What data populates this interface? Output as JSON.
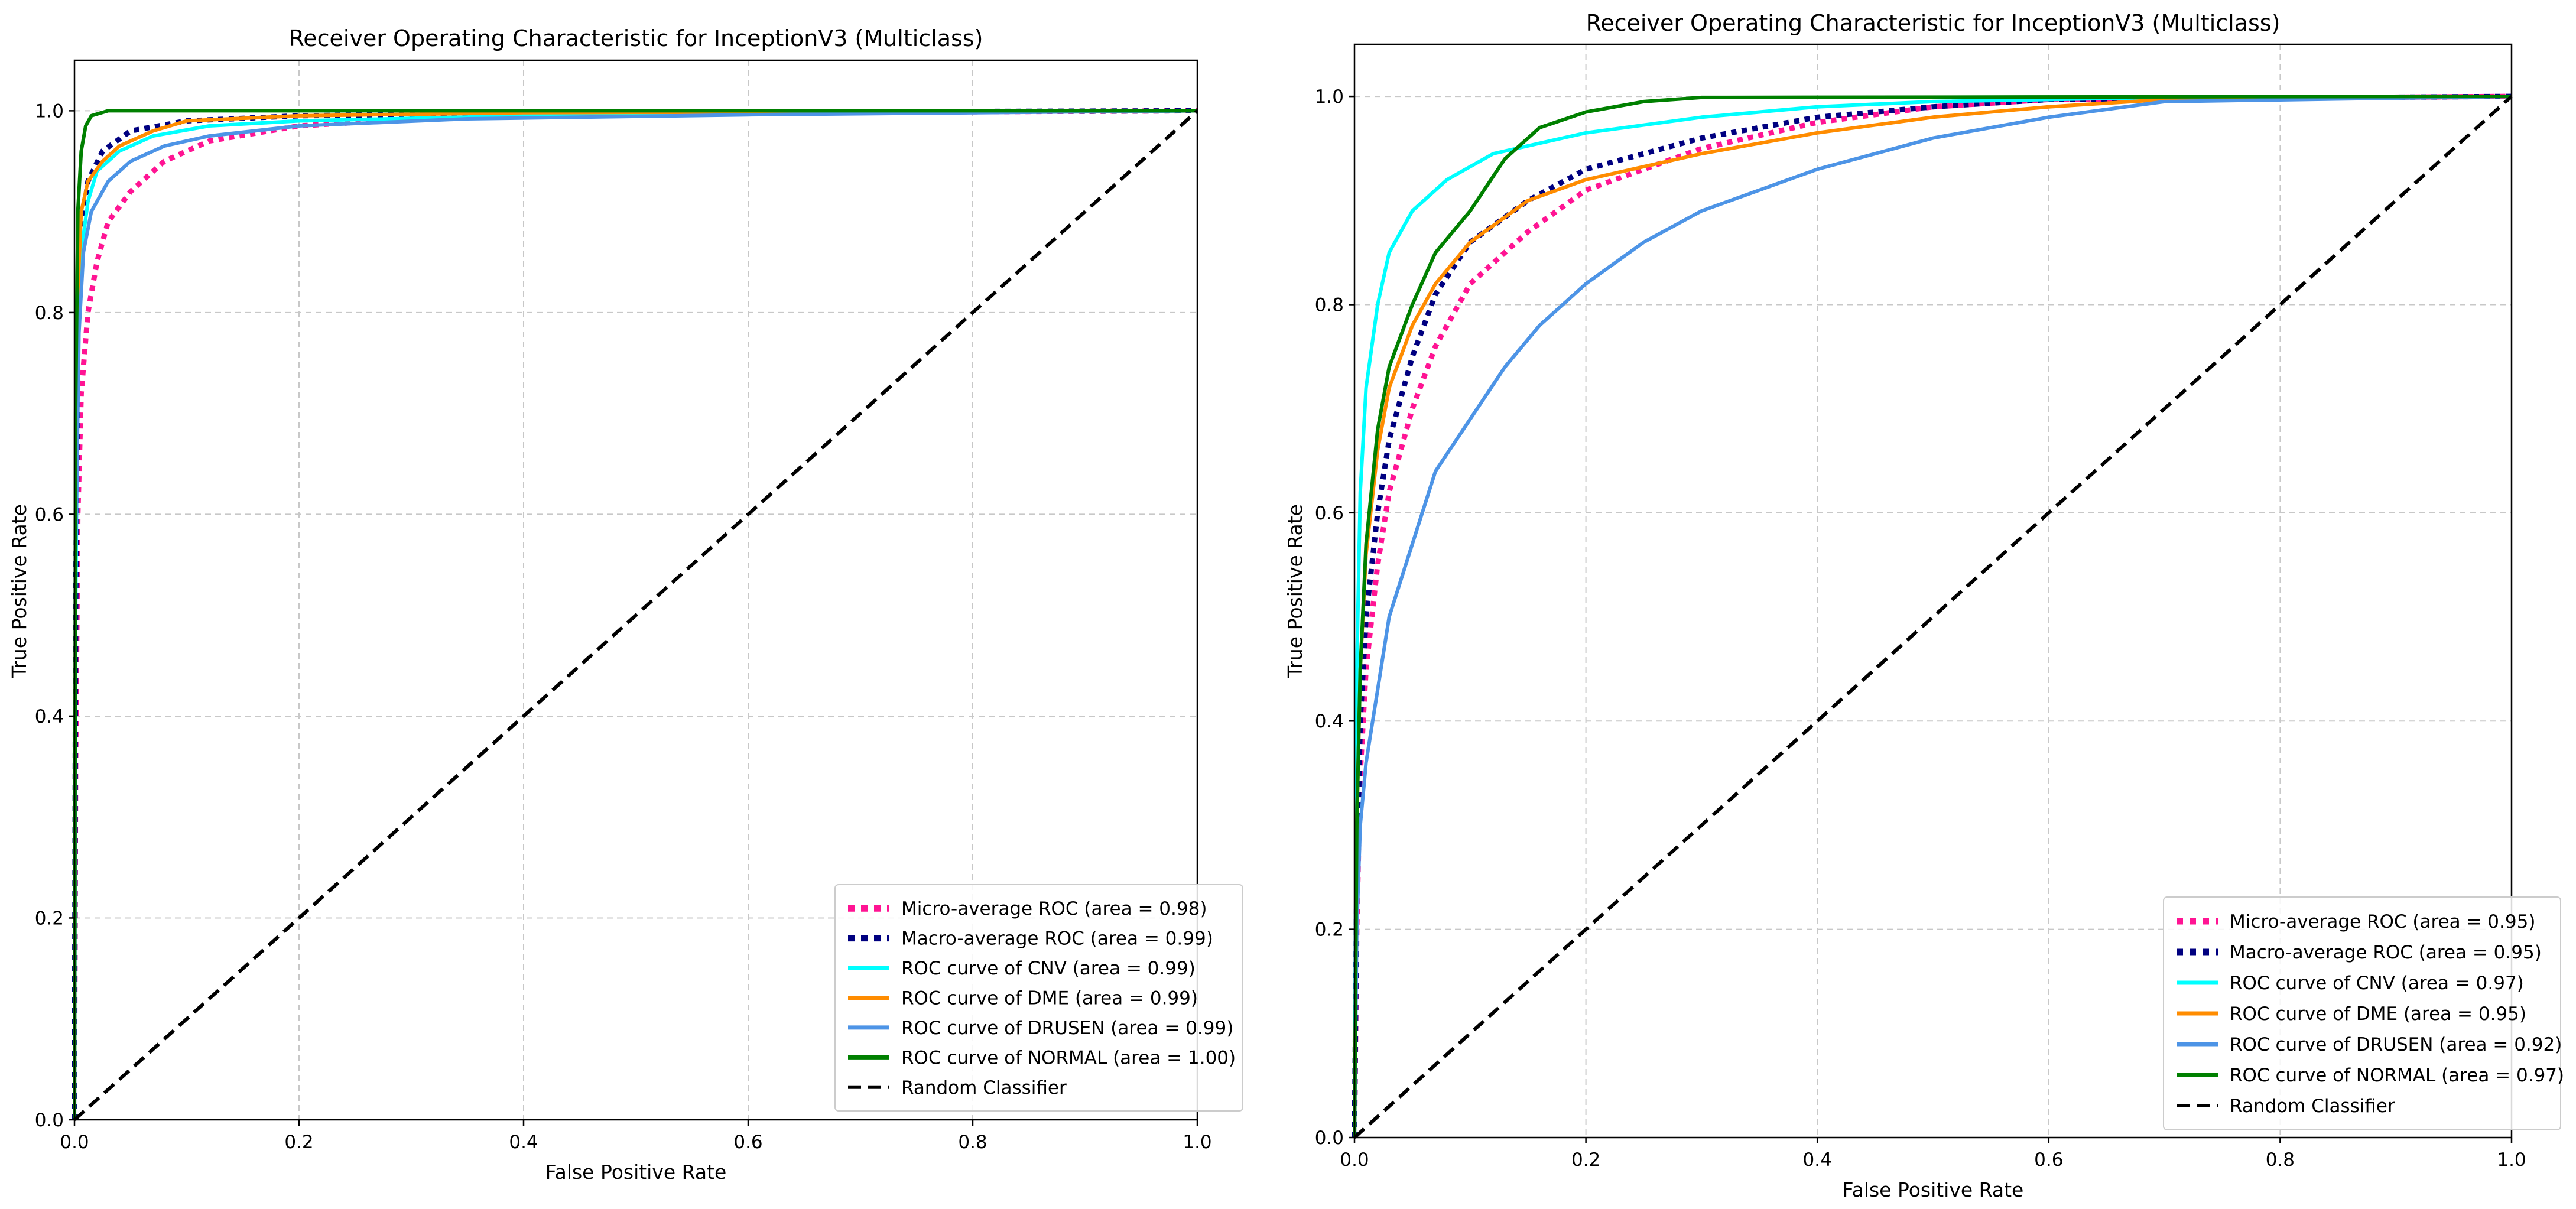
{
  "chart_data": [
    {
      "type": "line",
      "title": "Receiver Operating Characteristic for InceptionV3 (Multiclass)",
      "xlabel": "False Positive Rate",
      "ylabel": "True Positive Rate",
      "xlim": [
        0,
        1
      ],
      "ylim": [
        0,
        1.05
      ],
      "xticks": [
        "0.0",
        "0.2",
        "0.4",
        "0.6",
        "0.8",
        "1.0"
      ],
      "yticks": [
        "0.0",
        "0.2",
        "0.4",
        "0.6",
        "0.8",
        "1.0"
      ],
      "grid": true,
      "legend_position": "lower-right",
      "series": [
        {
          "name": "Micro-average ROC (area = 0.98)",
          "color": "#ff1493",
          "style": "dotted",
          "points": [
            [
              0,
              0
            ],
            [
              0.001,
              0.35
            ],
            [
              0.003,
              0.6
            ],
            [
              0.006,
              0.72
            ],
            [
              0.012,
              0.8
            ],
            [
              0.02,
              0.85
            ],
            [
              0.03,
              0.89
            ],
            [
              0.05,
              0.92
            ],
            [
              0.08,
              0.95
            ],
            [
              0.12,
              0.97
            ],
            [
              0.2,
              0.985
            ],
            [
              0.35,
              0.995
            ],
            [
              0.6,
              0.998
            ],
            [
              1,
              1
            ]
          ]
        },
        {
          "name": "Macro-average ROC (area = 0.99)",
          "color": "#000080",
          "style": "dotted",
          "points": [
            [
              0,
              0
            ],
            [
              0.001,
              0.5
            ],
            [
              0.003,
              0.78
            ],
            [
              0.006,
              0.88
            ],
            [
              0.012,
              0.93
            ],
            [
              0.025,
              0.96
            ],
            [
              0.05,
              0.98
            ],
            [
              0.1,
              0.99
            ],
            [
              0.2,
              0.995
            ],
            [
              0.4,
              0.998
            ],
            [
              1,
              1
            ]
          ]
        },
        {
          "name": "ROC curve of CNV (area = 0.99)",
          "color": "#00ffff",
          "style": "solid",
          "points": [
            [
              0,
              0
            ],
            [
              0.001,
              0.5
            ],
            [
              0.003,
              0.75
            ],
            [
              0.006,
              0.86
            ],
            [
              0.012,
              0.91
            ],
            [
              0.02,
              0.94
            ],
            [
              0.04,
              0.96
            ],
            [
              0.07,
              0.975
            ],
            [
              0.12,
              0.985
            ],
            [
              0.2,
              0.99
            ],
            [
              0.4,
              0.995
            ],
            [
              0.6,
              0.997
            ],
            [
              1,
              1
            ]
          ]
        },
        {
          "name": "ROC curve of DME (area = 0.99)",
          "color": "#ff8c00",
          "style": "solid",
          "points": [
            [
              0,
              0
            ],
            [
              0.001,
              0.6
            ],
            [
              0.003,
              0.82
            ],
            [
              0.006,
              0.9
            ],
            [
              0.012,
              0.93
            ],
            [
              0.025,
              0.95
            ],
            [
              0.04,
              0.965
            ],
            [
              0.07,
              0.98
            ],
            [
              0.1,
              0.99
            ],
            [
              0.2,
              0.995
            ],
            [
              0.4,
              0.998
            ],
            [
              1,
              1
            ]
          ]
        },
        {
          "name": "ROC curve of DRUSEN (area = 0.99)",
          "color": "#4d94e6",
          "style": "solid",
          "points": [
            [
              0,
              0
            ],
            [
              0.001,
              0.55
            ],
            [
              0.004,
              0.78
            ],
            [
              0.008,
              0.86
            ],
            [
              0.015,
              0.9
            ],
            [
              0.03,
              0.93
            ],
            [
              0.05,
              0.95
            ],
            [
              0.08,
              0.965
            ],
            [
              0.12,
              0.975
            ],
            [
              0.2,
              0.985
            ],
            [
              0.35,
              0.992
            ],
            [
              0.6,
              0.996
            ],
            [
              1,
              1
            ]
          ]
        },
        {
          "name": "ROC curve of NORMAL (area = 1.00)",
          "color": "#008000",
          "style": "solid",
          "points": [
            [
              0,
              0
            ],
            [
              0.001,
              0.7
            ],
            [
              0.003,
              0.9
            ],
            [
              0.006,
              0.96
            ],
            [
              0.01,
              0.985
            ],
            [
              0.015,
              0.995
            ],
            [
              0.03,
              1.0
            ],
            [
              1,
              1
            ]
          ]
        },
        {
          "name": "Random Classifier",
          "color": "#000000",
          "style": "dashed",
          "points": [
            [
              0,
              0
            ],
            [
              1,
              1
            ]
          ]
        }
      ]
    },
    {
      "type": "line",
      "title": "Receiver Operating Characteristic for InceptionV3 (Multiclass)",
      "xlabel": "False Positive Rate",
      "ylabel": "True Positive Rate",
      "xlim": [
        0,
        1
      ],
      "ylim": [
        0,
        1.05
      ],
      "xticks": [
        "0.0",
        "0.2",
        "0.4",
        "0.6",
        "0.8",
        "1.0"
      ],
      "yticks": [
        "0.0",
        "0.2",
        "0.4",
        "0.6",
        "0.8",
        "1.0"
      ],
      "grid": true,
      "legend_position": "lower-right",
      "series": [
        {
          "name": "Micro-average ROC (area = 0.95)",
          "color": "#ff1493",
          "style": "dotted",
          "points": [
            [
              0,
              0
            ],
            [
              0.002,
              0.2
            ],
            [
              0.005,
              0.35
            ],
            [
              0.01,
              0.45
            ],
            [
              0.02,
              0.55
            ],
            [
              0.03,
              0.62
            ],
            [
              0.05,
              0.7
            ],
            [
              0.07,
              0.76
            ],
            [
              0.1,
              0.82
            ],
            [
              0.15,
              0.87
            ],
            [
              0.2,
              0.91
            ],
            [
              0.3,
              0.95
            ],
            [
              0.4,
              0.975
            ],
            [
              0.5,
              0.99
            ],
            [
              0.6,
              0.997
            ],
            [
              1,
              1
            ]
          ]
        },
        {
          "name": "Macro-average ROC (area = 0.95)",
          "color": "#000080",
          "style": "dotted",
          "points": [
            [
              0,
              0
            ],
            [
              0.002,
              0.25
            ],
            [
              0.005,
              0.4
            ],
            [
              0.01,
              0.5
            ],
            [
              0.02,
              0.6
            ],
            [
              0.03,
              0.67
            ],
            [
              0.05,
              0.75
            ],
            [
              0.07,
              0.81
            ],
            [
              0.1,
              0.86
            ],
            [
              0.15,
              0.9
            ],
            [
              0.2,
              0.93
            ],
            [
              0.3,
              0.96
            ],
            [
              0.4,
              0.98
            ],
            [
              0.5,
              0.99
            ],
            [
              0.6,
              0.997
            ],
            [
              1,
              1
            ]
          ]
        },
        {
          "name": "ROC curve of CNV (area = 0.97)",
          "color": "#00ffff",
          "style": "solid",
          "points": [
            [
              0,
              0
            ],
            [
              0.002,
              0.45
            ],
            [
              0.005,
              0.62
            ],
            [
              0.01,
              0.72
            ],
            [
              0.02,
              0.8
            ],
            [
              0.03,
              0.85
            ],
            [
              0.05,
              0.89
            ],
            [
              0.08,
              0.92
            ],
            [
              0.12,
              0.945
            ],
            [
              0.2,
              0.965
            ],
            [
              0.3,
              0.98
            ],
            [
              0.4,
              0.99
            ],
            [
              0.5,
              0.995
            ],
            [
              0.7,
              0.999
            ],
            [
              1,
              1
            ]
          ]
        },
        {
          "name": "ROC curve of DME (area = 0.95)",
          "color": "#ff8c00",
          "style": "solid",
          "points": [
            [
              0,
              0
            ],
            [
              0.002,
              0.3
            ],
            [
              0.005,
              0.45
            ],
            [
              0.01,
              0.56
            ],
            [
              0.02,
              0.66
            ],
            [
              0.03,
              0.72
            ],
            [
              0.05,
              0.78
            ],
            [
              0.07,
              0.82
            ],
            [
              0.1,
              0.86
            ],
            [
              0.15,
              0.9
            ],
            [
              0.2,
              0.92
            ],
            [
              0.3,
              0.945
            ],
            [
              0.4,
              0.965
            ],
            [
              0.5,
              0.98
            ],
            [
              0.6,
              0.99
            ],
            [
              0.7,
              0.997
            ],
            [
              1,
              1
            ]
          ]
        },
        {
          "name": "ROC curve of DRUSEN (area = 0.92)",
          "color": "#4d94e6",
          "style": "solid",
          "points": [
            [
              0,
              0
            ],
            [
              0.002,
              0.2
            ],
            [
              0.005,
              0.3
            ],
            [
              0.01,
              0.36
            ],
            [
              0.02,
              0.43
            ],
            [
              0.03,
              0.5
            ],
            [
              0.05,
              0.57
            ],
            [
              0.07,
              0.64
            ],
            [
              0.1,
              0.69
            ],
            [
              0.13,
              0.74
            ],
            [
              0.16,
              0.78
            ],
            [
              0.2,
              0.82
            ],
            [
              0.25,
              0.86
            ],
            [
              0.3,
              0.89
            ],
            [
              0.4,
              0.93
            ],
            [
              0.5,
              0.96
            ],
            [
              0.6,
              0.98
            ],
            [
              0.7,
              0.995
            ],
            [
              1,
              1
            ]
          ]
        },
        {
          "name": "ROC curve of NORMAL (area = 0.97)",
          "color": "#008000",
          "style": "solid",
          "points": [
            [
              0,
              0
            ],
            [
              0.002,
              0.3
            ],
            [
              0.005,
              0.45
            ],
            [
              0.01,
              0.57
            ],
            [
              0.02,
              0.68
            ],
            [
              0.03,
              0.74
            ],
            [
              0.05,
              0.8
            ],
            [
              0.07,
              0.85
            ],
            [
              0.1,
              0.89
            ],
            [
              0.13,
              0.94
            ],
            [
              0.16,
              0.97
            ],
            [
              0.2,
              0.985
            ],
            [
              0.25,
              0.995
            ],
            [
              0.3,
              0.999
            ],
            [
              1,
              1
            ]
          ]
        },
        {
          "name": "Random Classifier",
          "color": "#000000",
          "style": "dashed",
          "points": [
            [
              0,
              0
            ],
            [
              1,
              1
            ]
          ]
        }
      ]
    }
  ]
}
